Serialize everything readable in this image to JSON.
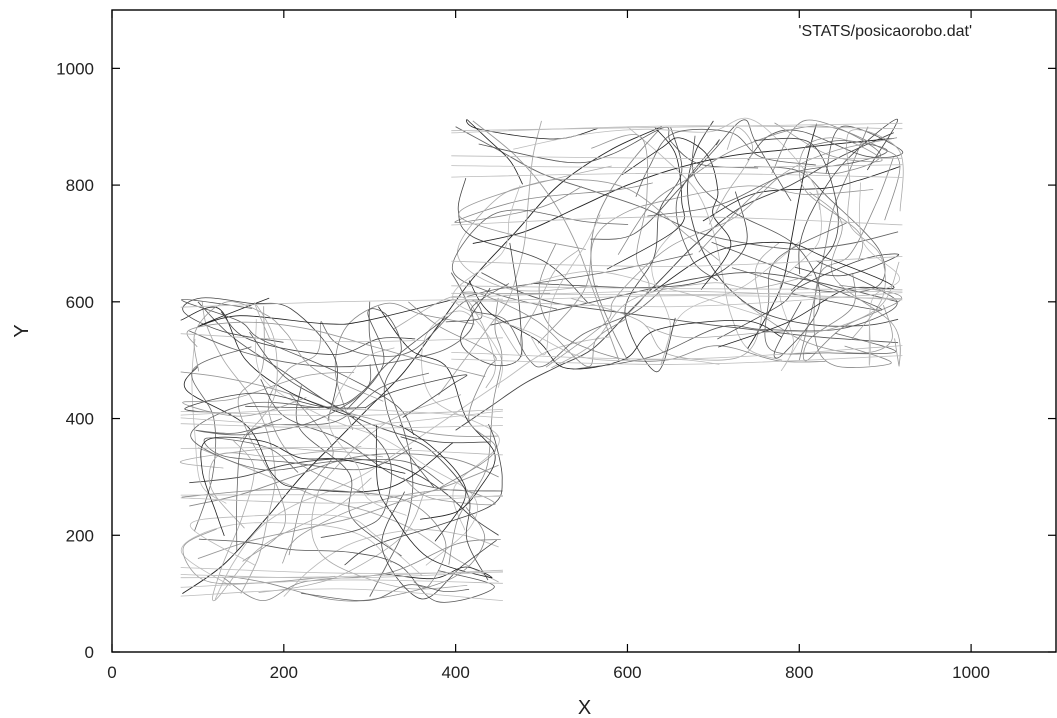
{
  "chart_data": {
    "type": "line",
    "title": "",
    "xlabel": "X",
    "ylabel": "Y",
    "xlim": [
      0,
      1100
    ],
    "ylim": [
      0,
      1100
    ],
    "xticks": [
      0,
      200,
      400,
      600,
      800,
      1000
    ],
    "yticks": [
      0,
      200,
      400,
      600,
      800,
      1000
    ],
    "grid": false,
    "legend_position": "top-right",
    "series": [
      {
        "name": "'STATS/posicaorobo.dat'",
        "color": "#333333",
        "regions": [
          {
            "x": [
              80,
              455
            ],
            "y": [
              85,
              610
            ]
          },
          {
            "x": [
              395,
              920
            ],
            "y": [
              480,
              915
            ]
          }
        ],
        "paths": [
          [
            [
              82,
              100
            ],
            [
              130,
              150
            ],
            [
              180,
              230
            ],
            [
              220,
              300
            ],
            [
              260,
              360
            ],
            [
              300,
              420
            ],
            [
              340,
              480
            ],
            [
              380,
              560
            ],
            [
              420,
              640
            ],
            [
              470,
              720
            ],
            [
              520,
              800
            ],
            [
              580,
              860
            ],
            [
              640,
              900
            ]
          ],
          [
            [
              100,
              600
            ],
            [
              140,
              540
            ],
            [
              200,
              480
            ],
            [
              260,
              420
            ],
            [
              320,
              380
            ],
            [
              380,
              360
            ],
            [
              440,
              360
            ]
          ],
          [
            [
              90,
              250
            ],
            [
              150,
              270
            ],
            [
              210,
              300
            ],
            [
              270,
              330
            ],
            [
              330,
              340
            ],
            [
              400,
              330
            ],
            [
              450,
              300
            ]
          ],
          [
            [
              450,
              120
            ],
            [
              400,
              160
            ],
            [
              350,
              210
            ],
            [
              300,
              240
            ],
            [
              250,
              260
            ],
            [
              200,
              290
            ],
            [
              150,
              320
            ],
            [
              100,
              350
            ]
          ],
          [
            [
              400,
              900
            ],
            [
              450,
              860
            ],
            [
              500,
              820
            ],
            [
              560,
              790
            ],
            [
              620,
              760
            ],
            [
              680,
              720
            ],
            [
              740,
              700
            ],
            [
              800,
              690
            ],
            [
              860,
              700
            ],
            [
              915,
              720
            ]
          ],
          [
            [
              420,
              910
            ],
            [
              470,
              850
            ],
            [
              510,
              780
            ],
            [
              540,
              700
            ],
            [
              560,
              620
            ],
            [
              575,
              560
            ],
            [
              590,
              500
            ]
          ],
          [
            [
              910,
              890
            ],
            [
              850,
              850
            ],
            [
              790,
              800
            ],
            [
              730,
              760
            ],
            [
              680,
              700
            ],
            [
              640,
              640
            ],
            [
              600,
              580
            ],
            [
              560,
              520
            ],
            [
              520,
              490
            ],
            [
              480,
              460
            ],
            [
              440,
              420
            ],
            [
              400,
              380
            ]
          ],
          [
            [
              600,
              900
            ],
            [
              640,
              850
            ],
            [
              680,
              790
            ],
            [
              700,
              720
            ],
            [
              710,
              650
            ],
            [
              720,
              580
            ],
            [
              740,
              520
            ],
            [
              780,
              500
            ]
          ],
          [
            [
              420,
              700
            ],
            [
              480,
              720
            ],
            [
              540,
              760
            ],
            [
              600,
              800
            ],
            [
              660,
              830
            ],
            [
              720,
              850
            ],
            [
              780,
              860
            ],
            [
              840,
              870
            ],
            [
              910,
              880
            ]
          ],
          [
            [
              440,
              560
            ],
            [
              500,
              580
            ],
            [
              560,
              600
            ],
            [
              620,
              620
            ],
            [
              680,
              640
            ],
            [
              740,
              650
            ],
            [
              800,
              640
            ],
            [
              860,
              620
            ],
            [
              915,
              600
            ]
          ],
          [
            [
              600,
              500
            ],
            [
              580,
              560
            ],
            [
              560,
              640
            ],
            [
              560,
              720
            ],
            [
              580,
              790
            ],
            [
              610,
              850
            ],
            [
              640,
              900
            ]
          ],
          [
            [
              150,
              100
            ],
            [
              170,
              160
            ],
            [
              180,
              220
            ],
            [
              190,
              300
            ],
            [
              180,
              380
            ],
            [
              160,
              440
            ],
            [
              130,
              500
            ],
            [
              110,
              560
            ],
            [
              105,
              600
            ]
          ],
          [
            [
              300,
              95
            ],
            [
              320,
              150
            ],
            [
              340,
              210
            ],
            [
              350,
              280
            ],
            [
              345,
              350
            ],
            [
              330,
              420
            ],
            [
              310,
              480
            ],
            [
              300,
              540
            ],
            [
              300,
              600
            ]
          ],
          [
            [
              80,
              480
            ],
            [
              130,
              470
            ],
            [
              190,
              450
            ],
            [
              250,
              420
            ],
            [
              300,
              400
            ],
            [
              350,
              380
            ],
            [
              400,
              370
            ],
            [
              450,
              370
            ]
          ],
          [
            [
              450,
              200
            ],
            [
              420,
              230
            ],
            [
              390,
              270
            ],
            [
              360,
              300
            ],
            [
              330,
              320
            ],
            [
              290,
              330
            ],
            [
              250,
              330
            ],
            [
              200,
              320
            ],
            [
              150,
              300
            ],
            [
              90,
              290
            ]
          ],
          [
            [
              200,
              95
            ],
            [
              230,
              140
            ],
            [
              270,
              180
            ],
            [
              310,
              200
            ],
            [
              360,
              210
            ],
            [
              410,
              200
            ],
            [
              450,
              180
            ]
          ],
          [
            [
              820,
              905
            ],
            [
              810,
              850
            ],
            [
              800,
              780
            ],
            [
              790,
              700
            ],
            [
              780,
              630
            ],
            [
              760,
              570
            ],
            [
              740,
              520
            ]
          ],
          [
            [
              430,
              650
            ],
            [
              470,
              620
            ],
            [
              510,
              600
            ],
            [
              550,
              590
            ],
            [
              600,
              580
            ],
            [
              650,
              570
            ],
            [
              700,
              560
            ],
            [
              760,
              550
            ],
            [
              820,
              540
            ],
            [
              915,
              530
            ]
          ],
          [
            [
              880,
              900
            ],
            [
              860,
              830
            ],
            [
              840,
              760
            ],
            [
              830,
              690
            ],
            [
              820,
              620
            ],
            [
              810,
              560
            ],
            [
              800,
              500
            ]
          ],
          [
            [
              500,
              910
            ],
            [
              490,
              850
            ],
            [
              485,
              780
            ],
            [
              480,
              700
            ],
            [
              470,
              640
            ],
            [
              460,
              600
            ],
            [
              440,
              560
            ],
            [
              420,
              520
            ],
            [
              400,
              480
            ],
            [
              380,
              440
            ]
          ],
          [
            [
              90,
              550
            ],
            [
              140,
              520
            ],
            [
              190,
              500
            ],
            [
              240,
              490
            ],
            [
              290,
              490
            ],
            [
              340,
              500
            ],
            [
              390,
              520
            ],
            [
              420,
              560
            ],
            [
              410,
              610
            ],
            [
              395,
              650
            ]
          ],
          [
            [
              100,
              160
            ],
            [
              160,
              190
            ],
            [
              220,
              210
            ],
            [
              280,
              230
            ],
            [
              340,
              260
            ],
            [
              400,
              290
            ],
            [
              450,
              320
            ]
          ],
          [
            [
              700,
              910
            ],
            [
              680,
              860
            ],
            [
              670,
              800
            ],
            [
              675,
              740
            ],
            [
              690,
              680
            ],
            [
              720,
              620
            ],
            [
              760,
              580
            ],
            [
              820,
              560
            ],
            [
              880,
              560
            ],
            [
              915,
              570
            ]
          ],
          [
            [
              120,
              90
            ],
            [
              140,
              150
            ],
            [
              170,
              210
            ],
            [
              210,
              250
            ],
            [
              260,
              280
            ],
            [
              300,
              310
            ],
            [
              340,
              350
            ],
            [
              380,
              390
            ],
            [
              420,
              430
            ],
            [
              460,
              470
            ],
            [
              500,
              510
            ],
            [
              540,
              530
            ],
            [
              580,
              540
            ]
          ]
        ]
      }
    ]
  }
}
